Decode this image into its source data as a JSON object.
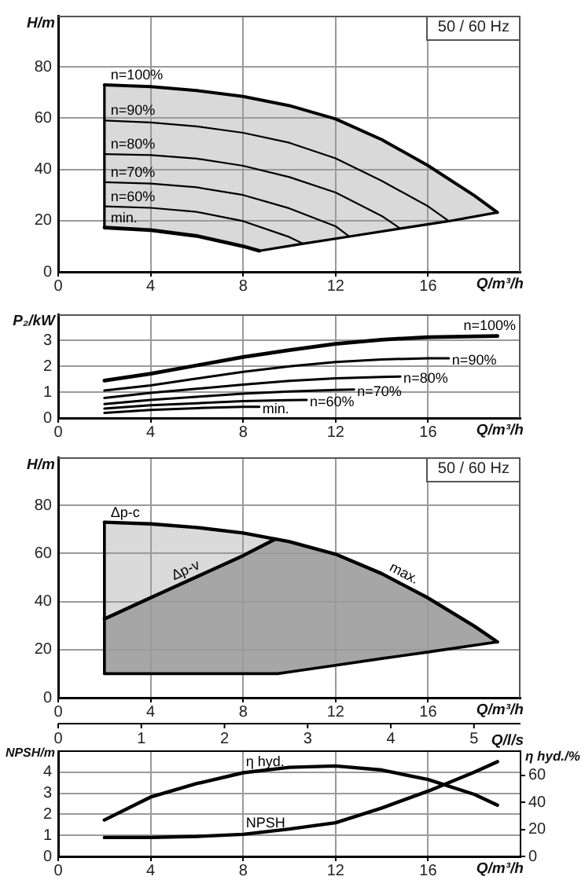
{
  "chart_data": [
    {
      "type": "line",
      "subtitle": "50 / 60 Hz",
      "xlabel": "Q/m³/h",
      "ylabel": "H/m",
      "xlim": [
        0,
        20
      ],
      "xticks": [
        0,
        4,
        8,
        12,
        16
      ],
      "ylim": [
        0,
        100
      ],
      "yticks": [
        0,
        20,
        40,
        60,
        80
      ],
      "grid": true,
      "marker": "none",
      "series": [
        {
          "name": "n=100%",
          "color": "#000000",
          "x": [
            2,
            4,
            6,
            8,
            10,
            12,
            14,
            16,
            18,
            19
          ],
          "values": [
            73,
            72.3,
            70.8,
            68.5,
            64.9,
            59.7,
            51.6,
            41.5,
            29.8,
            23.2
          ]
        },
        {
          "name": "n=90%",
          "color": "#000000",
          "x": [
            2,
            4,
            6,
            8,
            10,
            12,
            14,
            16,
            16.9
          ],
          "values": [
            59.1,
            58.3,
            56.8,
            54.3,
            50.4,
            44.3,
            35.5,
            25.6,
            19.8
          ]
        },
        {
          "name": "n=80%",
          "color": "#000000",
          "x": [
            2,
            4,
            6,
            8,
            10,
            12,
            14,
            14.8
          ],
          "values": [
            46,
            45.6,
            44.2,
            41.4,
            37,
            31,
            21.8,
            16.9
          ]
        },
        {
          "name": "n=70%",
          "color": "#000000",
          "x": [
            2,
            4,
            6,
            8,
            10,
            12,
            12.6
          ],
          "values": [
            35,
            34.5,
            33,
            30,
            24.8,
            17.8,
            13.8
          ]
        },
        {
          "name": "n=60%",
          "color": "#000000",
          "x": [
            2,
            4,
            6,
            8,
            10,
            10.6
          ],
          "values": [
            25.6,
            25,
            23.4,
            19.8,
            13.6,
            11
          ]
        },
        {
          "name": "min.",
          "color": "#000000",
          "x": [
            2,
            4,
            6,
            8,
            8.7
          ],
          "values": [
            17.3,
            16.3,
            14,
            10,
            8.2
          ]
        },
        {
          "color": "#000000",
          "x": [
            8.7,
            10.6,
            12.6,
            14.8,
            16.9,
            19
          ],
          "values": [
            8.2,
            11,
            13.8,
            16.9,
            19.8,
            23.2
          ]
        },
        {
          "color": "#000000",
          "x": [
            2,
            2
          ],
          "values": [
            17.3,
            73
          ]
        }
      ]
    },
    {
      "type": "line",
      "xlabel": "Q/m³/h",
      "ylabel": "P₂/kW",
      "xlim": [
        0,
        20
      ],
      "xticks": [
        0,
        4,
        8,
        12,
        16
      ],
      "ylim": [
        0,
        4
      ],
      "yticks": [
        0,
        1,
        2,
        3
      ],
      "grid": true,
      "marker": "none",
      "series": [
        {
          "name": "n=100%",
          "color": "#000000",
          "x": [
            2,
            4,
            6,
            8,
            10,
            12,
            14,
            16,
            18,
            19
          ],
          "values": [
            1.44,
            1.71,
            2.03,
            2.35,
            2.62,
            2.86,
            3.02,
            3.12,
            3.15,
            3.16
          ]
        },
        {
          "name": "n=90%",
          "color": "#000000",
          "x": [
            2,
            4,
            6,
            8,
            10,
            12,
            14,
            16,
            16.9
          ],
          "values": [
            1.06,
            1.26,
            1.52,
            1.78,
            1.99,
            2.16,
            2.26,
            2.3,
            2.3
          ]
        },
        {
          "name": "n=80%",
          "color": "#000000",
          "x": [
            2,
            4,
            6,
            8,
            10,
            12,
            14,
            14.8
          ],
          "values": [
            0.77,
            0.97,
            1.13,
            1.29,
            1.43,
            1.53,
            1.58,
            1.6
          ]
        },
        {
          "name": "n=70%",
          "color": "#000000",
          "x": [
            2,
            4,
            6,
            8,
            10,
            12,
            12.8
          ],
          "values": [
            0.54,
            0.7,
            0.82,
            0.94,
            1.02,
            1.08,
            1.1
          ]
        },
        {
          "name": "n=60%",
          "color": "#000000",
          "x": [
            2,
            4,
            6,
            8,
            10,
            10.75
          ],
          "values": [
            0.36,
            0.49,
            0.57,
            0.65,
            0.69,
            0.7
          ]
        },
        {
          "name": "min.",
          "color": "#000000",
          "x": [
            2,
            4,
            6,
            8,
            8.7
          ],
          "values": [
            0.2,
            0.31,
            0.38,
            0.43,
            0.43
          ]
        }
      ]
    },
    {
      "type": "line",
      "subtitle": "50 / 60 Hz",
      "xlabel": "Q/m³/h",
      "ylabel": "H/m",
      "xlim": [
        0,
        20
      ],
      "xticks": [
        0,
        4,
        8,
        12,
        16
      ],
      "ylim": [
        0,
        100
      ],
      "yticks": [
        0,
        20,
        40,
        60,
        80
      ],
      "grid": true,
      "marker": "none",
      "annotations": [
        {
          "text": "Δp-c",
          "x": 2,
          "y": 73
        }
      ],
      "series": [
        {
          "name": "Δp-v",
          "color": "#000000",
          "x": [
            2,
            4,
            6,
            8,
            9.4
          ],
          "values": [
            32.8,
            41.6,
            50.3,
            59.1,
            66
          ]
        },
        {
          "name": "max.",
          "color": "#000000",
          "x": [
            2,
            4,
            6,
            8,
            10,
            12,
            14,
            16,
            18,
            19
          ],
          "values": [
            73,
            72.3,
            70.8,
            68.5,
            64.9,
            59.7,
            51.6,
            41.5,
            29.8,
            23.2
          ]
        },
        {
          "color": "#000000",
          "x": [
            2,
            9.5,
            10,
            12,
            14,
            16,
            18,
            19
          ],
          "values": [
            10,
            10,
            10.7,
            13.5,
            16.3,
            19,
            21.8,
            23.2
          ]
        },
        {
          "color": "#000000",
          "x": [
            2,
            2
          ],
          "values": [
            10,
            73
          ]
        }
      ]
    },
    {
      "type": "line",
      "xlabel": "Q/m³/h",
      "x2label": "Q/l/s",
      "ylabel": "NPSH/m",
      "y2label": "η hyd./%",
      "xlim": [
        0,
        20
      ],
      "xticks": [
        0,
        4,
        8,
        12,
        16
      ],
      "x2lim": [
        0,
        5.56
      ],
      "x2ticks": [
        0,
        1,
        2,
        3,
        4,
        5
      ],
      "ylim": [
        0,
        5
      ],
      "yticks": [
        0,
        1,
        2,
        3,
        4
      ],
      "y2lim": [
        0,
        78
      ],
      "y2ticks": [
        0,
        20,
        40,
        60
      ],
      "grid": true,
      "marker": "none",
      "series": [
        {
          "name": "η hyd.",
          "color": "#000000",
          "axis": "y2",
          "x": [
            2,
            4,
            6,
            8,
            10,
            12,
            14,
            16,
            18,
            19
          ],
          "values": [
            27,
            44,
            54,
            62,
            66,
            67,
            64,
            57,
            46,
            38
          ]
        },
        {
          "name": "NPSH",
          "color": "#000000",
          "x": [
            2,
            4,
            6,
            8,
            10,
            12,
            14,
            16,
            18,
            19
          ],
          "values": [
            0.9,
            0.9,
            0.95,
            1.05,
            1.3,
            1.6,
            2.3,
            3.1,
            4,
            4.5
          ]
        }
      ]
    }
  ]
}
